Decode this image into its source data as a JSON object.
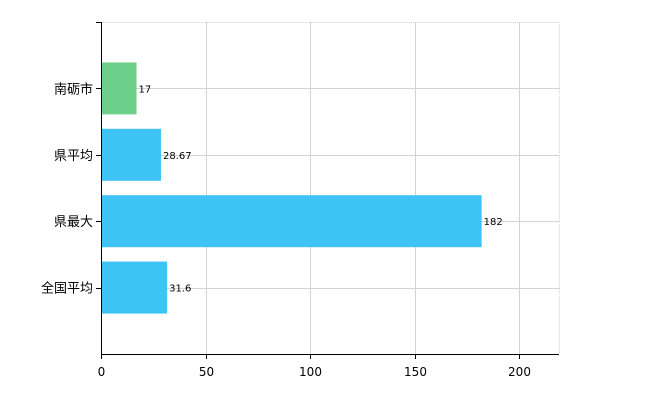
{
  "chart_data": {
    "type": "bar",
    "orientation": "horizontal",
    "categories": [
      "南砺市",
      "県平均",
      "県最大",
      "全国平均"
    ],
    "values": [
      17,
      28.67,
      182,
      31.6
    ],
    "value_labels": [
      "17",
      "28.67",
      "182",
      "31.6"
    ],
    "bar_colors": [
      "#6fd08c",
      "#3dc4f5",
      "#3dc4f5",
      "#3dc4f5"
    ],
    "xlim": [
      0,
      219
    ],
    "xticks": [
      0,
      50,
      100,
      150,
      200
    ],
    "xtick_labels": [
      "0",
      "50",
      "100",
      "150",
      "200"
    ],
    "grid": true,
    "title": "",
    "xlabel": "",
    "ylabel": ""
  }
}
